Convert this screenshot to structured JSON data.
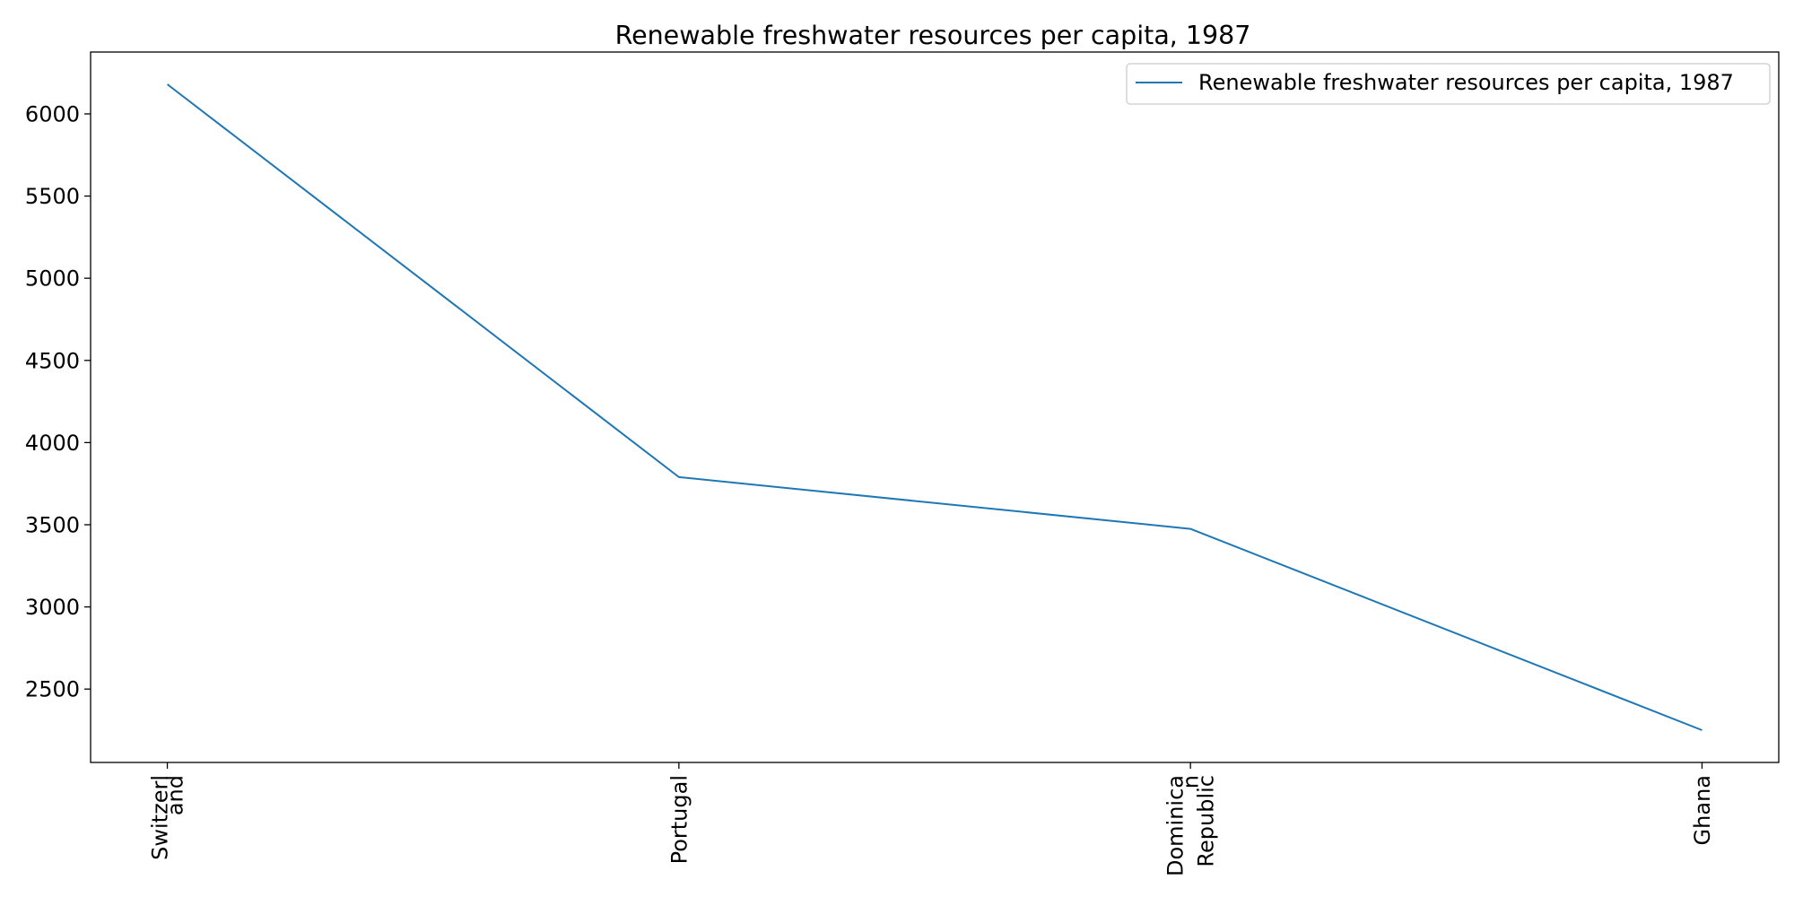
{
  "chart_data": {
    "type": "line",
    "title": "Renewable freshwater resources per capita, 1987",
    "xlabel": "",
    "ylabel": "",
    "categories": [
      "Switzerland",
      "Portugal",
      "Dominican Republic",
      "Ghana"
    ],
    "category_tick_lines": [
      [
        "Switzerl",
        "and"
      ],
      [
        "Portugal"
      ],
      [
        "Dominica",
        "n",
        "Republic"
      ],
      [
        "Ghana"
      ]
    ],
    "series": [
      {
        "name": "Renewable freshwater resources per capita, 1987",
        "values": [
          6180,
          3790,
          3475,
          2250
        ],
        "color": "#1f77b4"
      }
    ],
    "yticks": [
      2500,
      3000,
      3500,
      4000,
      4500,
      5000,
      5500,
      6000
    ],
    "ylim": [
      2053.5,
      6376.5
    ],
    "xlim": [
      -0.15,
      3.15
    ],
    "grid": false,
    "legend_position": "top-right"
  }
}
